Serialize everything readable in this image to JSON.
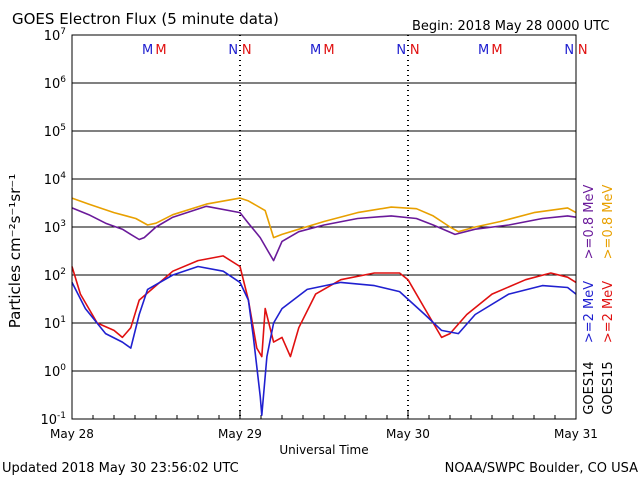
{
  "chart_data": {
    "type": "line",
    "title": "GOES Electron Flux (5 minute data)",
    "begin_label": "Begin: 2018 May 28 0000 UTC",
    "updated_label": "Updated 2018 May 30 23:56:02 UTC",
    "credit_label": "NOAA/SWPC Boulder, CO USA",
    "xlabel": "Universal Time",
    "ylabel": "Particles cm⁻²s⁻¹sr⁻¹",
    "y_scale": "log",
    "ylim": [
      0.1,
      10000000
    ],
    "y_ticks": [
      {
        "base": "10",
        "exp": "7"
      },
      {
        "base": "10",
        "exp": "6"
      },
      {
        "base": "10",
        "exp": "5"
      },
      {
        "base": "10",
        "exp": "4"
      },
      {
        "base": "10",
        "exp": "3"
      },
      {
        "base": "10",
        "exp": "2"
      },
      {
        "base": "10",
        "exp": "1"
      },
      {
        "base": "10",
        "exp": "0"
      },
      {
        "base": "10",
        "exp": "-1"
      }
    ],
    "x_ticks": [
      "May 28",
      "May 29",
      "May 30",
      "May 31"
    ],
    "threshold": 1000,
    "markers": [
      {
        "text": "M",
        "color": "#2020d0",
        "day": 0.45
      },
      {
        "text": "M",
        "color": "#e01010",
        "day": 0.53
      },
      {
        "text": "N",
        "color": "#2020d0",
        "day": 0.96
      },
      {
        "text": "N",
        "color": "#e01010",
        "day": 1.04
      },
      {
        "text": "M",
        "color": "#2020d0",
        "day": 1.45
      },
      {
        "text": "M",
        "color": "#e01010",
        "day": 1.53
      },
      {
        "text": "N",
        "color": "#2020d0",
        "day": 1.96
      },
      {
        "text": "N",
        "color": "#e01010",
        "day": 2.04
      },
      {
        "text": "M",
        "color": "#2020d0",
        "day": 2.45
      },
      {
        "text": "M",
        "color": "#e01010",
        "day": 2.53
      },
      {
        "text": "N",
        "color": "#2020d0",
        "day": 2.96
      },
      {
        "text": "N",
        "color": "#e01010",
        "day": 3.04
      }
    ],
    "legend": [
      {
        "label": ">=0.8 MeV",
        "color": "#e8a000"
      },
      {
        "label": ">=0.8 MeV",
        "color": "#6a1a9a"
      },
      {
        "label": ">=2 MeV",
        "color": "#e01010"
      },
      {
        "label": ">=2 MeV",
        "color": "#2020d0"
      },
      {
        "label": "GOES15",
        "color": "#000000"
      },
      {
        "label": "GOES14",
        "color": "#000000"
      }
    ],
    "series": [
      {
        "color": "#e8a000",
        "x": [
          0,
          0.1,
          0.25,
          0.38,
          0.45,
          0.5,
          0.6,
          0.8,
          1.0,
          1.05,
          1.15,
          1.2,
          1.25,
          1.35,
          1.5,
          1.7,
          1.9,
          2.05,
          2.15,
          2.25,
          2.3,
          2.4,
          2.55,
          2.75,
          2.95,
          3.0
        ],
        "y": [
          4000,
          3000,
          2000,
          1500,
          1100,
          1200,
          1800,
          3000,
          4000,
          3500,
          2200,
          600,
          700,
          900,
          1300,
          2000,
          2600,
          2400,
          1700,
          1000,
          800,
          1000,
          1300,
          2000,
          2500,
          2000
        ]
      },
      {
        "color": "#6a1a9a",
        "x": [
          0,
          0.1,
          0.2,
          0.3,
          0.35,
          0.4,
          0.43,
          0.5,
          0.6,
          0.8,
          1.0,
          1.05,
          1.12,
          1.17,
          1.2,
          1.25,
          1.35,
          1.5,
          1.7,
          1.9,
          2.05,
          2.15,
          2.28,
          2.4,
          2.6,
          2.8,
          2.95,
          3.0
        ],
        "y": [
          2500,
          1800,
          1200,
          900,
          700,
          550,
          600,
          1000,
          1600,
          2700,
          2000,
          1200,
          600,
          300,
          200,
          500,
          800,
          1100,
          1500,
          1700,
          1500,
          1100,
          700,
          900,
          1100,
          1500,
          1700,
          1600
        ]
      },
      {
        "color": "#e01010",
        "x": [
          0,
          0.05,
          0.15,
          0.25,
          0.3,
          0.35,
          0.4,
          0.5,
          0.6,
          0.75,
          0.9,
          1.0,
          1.05,
          1.1,
          1.13,
          1.15,
          1.2,
          1.25,
          1.3,
          1.35,
          1.45,
          1.6,
          1.8,
          1.95,
          2.0,
          2.1,
          2.2,
          2.25,
          2.35,
          2.5,
          2.7,
          2.85,
          2.95,
          3.0
        ],
        "y": [
          150,
          40,
          10,
          7,
          5,
          8,
          30,
          60,
          120,
          200,
          250,
          150,
          30,
          3,
          2,
          20,
          4,
          5,
          2,
          8,
          40,
          80,
          110,
          110,
          80,
          20,
          5,
          6,
          15,
          40,
          80,
          110,
          90,
          70
        ]
      },
      {
        "color": "#2020d0",
        "x": [
          0,
          0.08,
          0.2,
          0.3,
          0.35,
          0.4,
          0.45,
          0.6,
          0.75,
          0.9,
          1.0,
          1.05,
          1.08,
          1.12,
          1.13,
          1.16,
          1.2,
          1.25,
          1.4,
          1.6,
          1.8,
          1.95,
          2.1,
          2.2,
          2.3,
          2.4,
          2.6,
          2.8,
          2.95,
          3.0
        ],
        "y": [
          70,
          20,
          6,
          4,
          3,
          15,
          50,
          100,
          150,
          120,
          70,
          30,
          5,
          0.3,
          0.12,
          2,
          10,
          20,
          50,
          70,
          60,
          45,
          15,
          7,
          6,
          15,
          40,
          60,
          55,
          40
        ]
      }
    ]
  }
}
